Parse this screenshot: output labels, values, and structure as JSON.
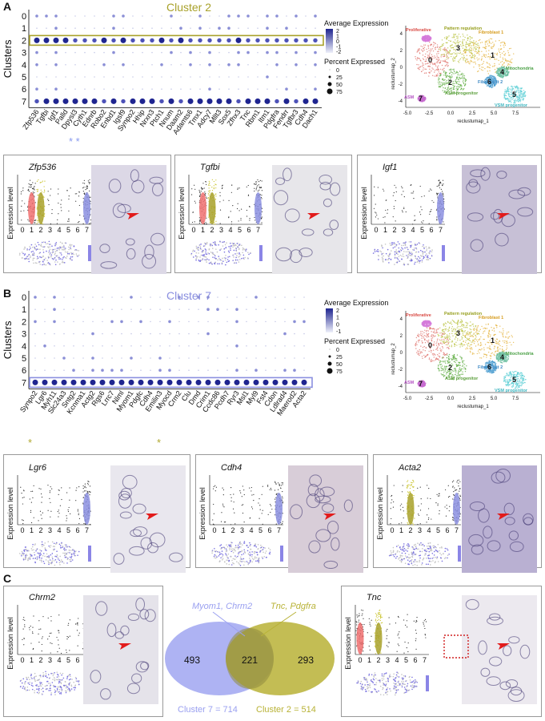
{
  "panels": {
    "A": {
      "letter": "A",
      "title": "Cluster 2",
      "title_color": "#a8a12a",
      "highlight_cluster": "2",
      "genes": [
        "Zfp536",
        "Tgfbi",
        "Igf1",
        "Palld",
        "Dpysl3",
        "Cyth1",
        "Ednrb",
        "Robo2",
        "Enbd1",
        "Igsf9",
        "Synpo2",
        "Hhip",
        "Nrxn3",
        "Ptch1",
        "Nnum",
        "Daam2",
        "Adamts6",
        "Tmx1",
        "Adcy7",
        "Mllt3",
        "Sox5",
        "Zfhx3",
        "Tnc",
        "Rbm1",
        "Itm1",
        "Pdgfra",
        "Fendrr",
        "Tgfbr3",
        "Cdh4",
        "Dach1"
      ],
      "asterisks": "* *",
      "asterisk_color": "#8899ee",
      "dots": {
        "0": [
          1,
          1,
          1,
          0,
          0,
          0,
          0,
          0,
          1,
          1,
          0,
          0,
          0,
          0,
          1,
          0,
          0,
          1,
          0,
          0,
          1,
          1,
          1,
          0,
          1,
          1,
          0,
          1,
          0,
          1
        ],
        "1": [
          0,
          0,
          1,
          0,
          0,
          0,
          0,
          0,
          1,
          0,
          0,
          0,
          0,
          0,
          0,
          1,
          0,
          1,
          0,
          1,
          1,
          0,
          0,
          0,
          1,
          0,
          1,
          0,
          0,
          0
        ],
        "2": [
          3,
          3,
          3,
          3,
          2,
          2,
          2,
          3,
          2,
          3,
          2,
          2,
          2,
          3,
          2,
          3,
          2,
          2,
          2,
          2,
          2,
          3,
          2,
          2,
          2,
          2,
          2,
          2,
          2,
          2
        ],
        "3": [
          1,
          0,
          1,
          0,
          0,
          0,
          0,
          0,
          1,
          0,
          0,
          0,
          0,
          0,
          1,
          0,
          1,
          0,
          1,
          0,
          0,
          1,
          1,
          0,
          1,
          1,
          0,
          1,
          0,
          1
        ],
        "4": [
          1,
          0,
          1,
          0,
          0,
          0,
          0,
          1,
          0,
          1,
          0,
          0,
          0,
          1,
          0,
          0,
          1,
          0,
          1,
          0,
          1,
          1,
          0,
          0,
          0,
          1,
          0,
          1,
          0,
          1
        ],
        "5": [
          0,
          0,
          0,
          0,
          0,
          0,
          0,
          0,
          0,
          0,
          0,
          0,
          0,
          0,
          0,
          0,
          0,
          0,
          0,
          0,
          0,
          0,
          0,
          0,
          1,
          0,
          0,
          0,
          0,
          0
        ],
        "6": [
          1,
          0,
          1,
          0,
          0,
          0,
          0,
          0,
          0,
          0,
          0,
          0,
          0,
          0,
          0,
          0,
          0,
          0,
          1,
          0,
          0,
          0,
          0,
          0,
          0,
          0,
          1,
          0,
          0,
          1
        ],
        "7": [
          2,
          3,
          3,
          3,
          3,
          3,
          3,
          2,
          3,
          2,
          3,
          3,
          3,
          2,
          3,
          2,
          3,
          3,
          3,
          3,
          3,
          2,
          3,
          3,
          3,
          2,
          3,
          2,
          3,
          3
        ]
      },
      "violins": [
        {
          "gene": "Zfp536"
        },
        {
          "gene": "Tgfbi"
        },
        {
          "gene": "Igf1"
        }
      ]
    },
    "B": {
      "letter": "B",
      "title": "Cluster 7",
      "title_color": "#8a8fe0",
      "highlight_cluster": "7",
      "genes": [
        "Synpo2",
        "Lgr6",
        "Myh11",
        "Slc24a3",
        "Sntg2",
        "Kcnma1",
        "Actg2",
        "Rgs6",
        "Lrrc7",
        "Nlml",
        "Myom1",
        "Pdgfc",
        "Cdh4",
        "Emilin3",
        "Myocd",
        "Crm2",
        "Clu",
        "Dmd",
        "Crim1",
        "Ccdc86",
        "Pcdh7",
        "Ryr3",
        "Msl1",
        "Myl9",
        "Fst4",
        "Cdon",
        "Ldlrad4",
        "Maerod2",
        "Acta2"
      ],
      "asterisks": [
        "*",
        "*"
      ],
      "asterisk_color": "#b0a830",
      "violins": [
        {
          "gene": "Lgr6"
        },
        {
          "gene": "Cdh4"
        },
        {
          "gene": "Acta2"
        }
      ]
    },
    "C": {
      "letter": "C",
      "violins": [
        {
          "gene": "Chrm2"
        },
        {
          "gene": "Tnc"
        }
      ],
      "venn": {
        "left_genes": "Myom1, Chrm2",
        "right_genes": "Tnc, Pdgfra",
        "left_only": "493",
        "overlap": "221",
        "right_only": "293",
        "left_label": "Cluster 7 = 714",
        "right_label": "Cluster 2 = 514",
        "left_color": "#9aa0f0",
        "right_color": "#b8b236"
      }
    }
  },
  "common": {
    "clusters_label": "Clusters",
    "cluster_ids": [
      "0",
      "1",
      "2",
      "3",
      "4",
      "5",
      "6",
      "7"
    ],
    "avg_expr_label": "Average Expression",
    "avg_ticks_A": [
      "2",
      "1",
      "0",
      "-1",
      "-2"
    ],
    "avg_ticks_B": [
      "2",
      "1",
      "0",
      "-1"
    ],
    "pct_label": "Percent Expressed",
    "pct_ticks": [
      "0",
      "25",
      "50",
      "75"
    ],
    "expression_level": "Expression level",
    "umap_x": "reclustumap_1",
    "umap_y": "reclustumap_2",
    "umap_xticks": [
      "-5.0",
      "-2.5",
      "0.0",
      "2.5",
      "5.0",
      "7.5"
    ],
    "umap_yticks": [
      "4",
      "2",
      "0",
      "-2",
      "-4"
    ],
    "violin_x": [
      "0",
      "1",
      "2",
      "3",
      "4",
      "5",
      "6",
      "7"
    ],
    "umap_labels": {
      "proliferative": "Proliferative",
      "pattern": "Pattern regulation",
      "fibro1": "Fibroblast 1",
      "mito": "Mitochondria",
      "fibro2": "Fibroblast 2",
      "vsm": "VSM progenitor",
      "asm_prog": "ASM progenitor",
      "asm": "ASM"
    }
  }
}
